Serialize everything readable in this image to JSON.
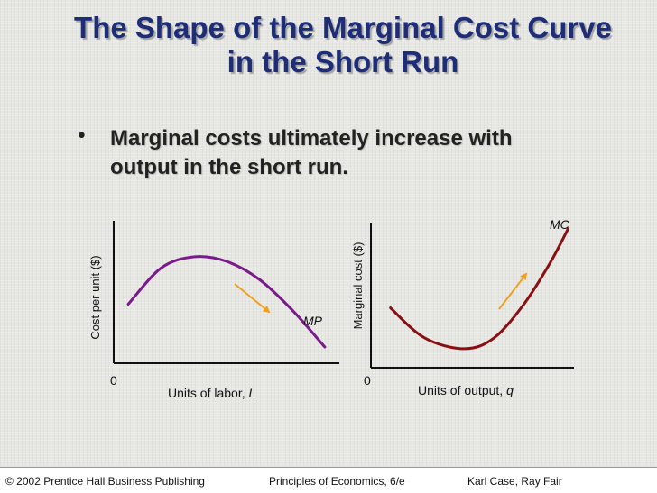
{
  "slide": {
    "title_line1": "The Shape of the Marginal Cost Curve",
    "title_line2": "in the Short Run",
    "bullet_marker": "•",
    "bullet_line1": "Marginal costs ultimately increase with",
    "bullet_line2": "output in the short run."
  },
  "footer": {
    "left": "© 2002 Prentice Hall Business Publishing",
    "center": "Principles of Economics, 6/e",
    "right": "Karl Case, Ray Fair"
  },
  "colors": {
    "title": "#1e2d78",
    "mp_curve": "#7a1b8c",
    "mc_curve": "#8a0f12",
    "arrow": "#f0a020"
  },
  "chart_data": [
    {
      "type": "line",
      "ylabel": "Cost per unit ($)",
      "xlabel_prefix": "Units of labor, ",
      "xlabel_var": "L",
      "origin_label": "0",
      "series": [
        {
          "name": "MP",
          "x": [
            0.05,
            0.2,
            0.35,
            0.5,
            0.65,
            0.8,
            0.95
          ],
          "y": [
            0.5,
            0.82,
            0.92,
            0.88,
            0.72,
            0.45,
            0.12
          ]
        }
      ],
      "annotation_arrow": "down-right"
    },
    {
      "type": "line",
      "ylabel": "Marginal cost ($)",
      "xlabel_prefix": "Units of output, ",
      "xlabel_var": "q",
      "origin_label": "0",
      "series": [
        {
          "name": "MC",
          "x": [
            0.08,
            0.25,
            0.45,
            0.6,
            0.75,
            0.88,
            0.97
          ],
          "y": [
            0.42,
            0.2,
            0.12,
            0.2,
            0.45,
            0.75,
            1.0
          ]
        }
      ],
      "annotation_arrow": "up-right"
    }
  ]
}
